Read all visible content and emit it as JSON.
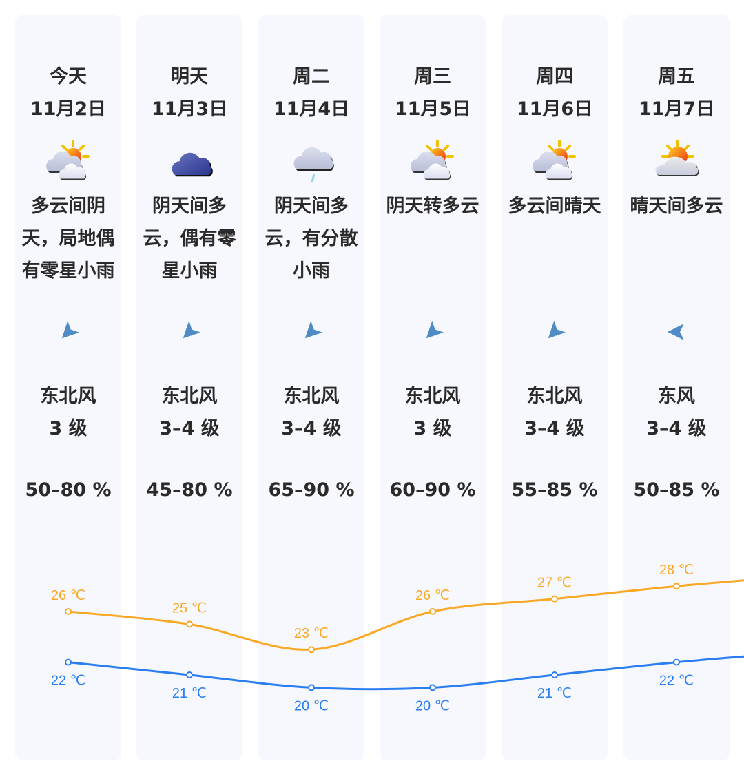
{
  "days": [
    {
      "day": "今天",
      "date": "11月2日",
      "icon": "partly-cloudy-overcast-icon",
      "desc": "多云间阴天，局地偶有零星小雨",
      "wind_dir": "东北风",
      "wind_level": "3 级",
      "wind_icon": "wind-northeast-icon",
      "wind_rotation": -45,
      "humidity": "50–80 %",
      "high": "26 ℃",
      "low": "22 ℃"
    },
    {
      "day": "明天",
      "date": "11月3日",
      "icon": "overcast-icon",
      "desc": "阴天间多云，偶有零星小雨",
      "wind_dir": "东北风",
      "wind_level": "3–4 级",
      "wind_icon": "wind-northeast-icon",
      "wind_rotation": -45,
      "humidity": "45–80 %",
      "high": "25 ℃",
      "low": "21 ℃"
    },
    {
      "day": "周二",
      "date": "11月4日",
      "icon": "light-rain-icon",
      "desc": "阴天间多云，有分散小雨",
      "wind_dir": "东北风",
      "wind_level": "3–4 级",
      "wind_icon": "wind-northeast-icon",
      "wind_rotation": -45,
      "humidity": "65–90 %",
      "high": "23 ℃",
      "low": "20 ℃"
    },
    {
      "day": "周三",
      "date": "11月5日",
      "icon": "partly-cloudy-overcast-icon",
      "desc": "阴天转多云",
      "wind_dir": "东北风",
      "wind_level": "3 级",
      "wind_icon": "wind-northeast-icon",
      "wind_rotation": -45,
      "humidity": "60–90 %",
      "high": "26 ℃",
      "low": "20 ℃"
    },
    {
      "day": "周四",
      "date": "11月6日",
      "icon": "partly-cloudy-overcast-icon",
      "desc": "多云间晴天",
      "wind_dir": "东北风",
      "wind_level": "3–4 级",
      "wind_icon": "wind-northeast-icon",
      "wind_rotation": -45,
      "humidity": "55–85 %",
      "high": "27 ℃",
      "low": "21 ℃"
    },
    {
      "day": "周五",
      "date": "11月7日",
      "icon": "sunny-partly-cloudy-icon",
      "desc": "晴天间多云",
      "wind_dir": "东风",
      "wind_level": "3–4 级",
      "wind_icon": "wind-east-icon",
      "wind_rotation": 0,
      "humidity": "50–85 %",
      "high": "28 ℃",
      "low": "22 ℃"
    }
  ],
  "chart_data": {
    "type": "line",
    "categories": [
      "11月2日",
      "11月3日",
      "11月4日",
      "11月5日",
      "11月6日",
      "11月7日"
    ],
    "series": [
      {
        "values": [
          26,
          25,
          23,
          26,
          27,
          28
        ],
        "color": "#f9a825"
      },
      {
        "values": [
          22,
          21,
          20,
          20,
          21,
          22
        ],
        "color": "#2b7df2"
      }
    ],
    "unit": "℃"
  },
  "colors": {
    "card_bg": "#f7f8fd",
    "high": "#f9a825",
    "low": "#2b7df2",
    "wind_arrow": "#4f8bc4"
  }
}
